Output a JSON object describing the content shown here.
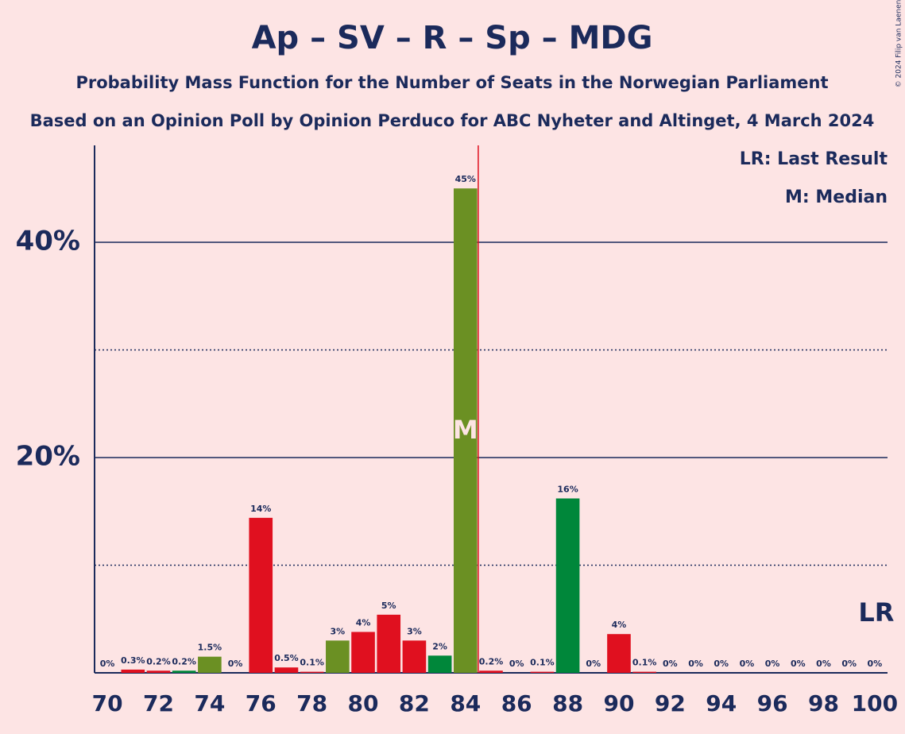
{
  "chart_data": {
    "type": "bar",
    "title": "Ap – SV – R – Sp – MDG",
    "subtitle": "Probability Mass Function for the Number of Seats in the Norwegian Parliament",
    "subtitle2": "Based on an Opinion Poll by Opinion Perduco for ABC Nyheter and Altinget, 4 March 2024",
    "copyright": "© 2024 Filip van Laenen",
    "legend": [
      "LR: Last Result",
      "M: Median"
    ],
    "x": [
      70,
      71,
      72,
      73,
      74,
      75,
      76,
      77,
      78,
      79,
      80,
      81,
      82,
      83,
      84,
      85,
      86,
      87,
      88,
      89,
      90,
      91,
      92,
      93,
      94,
      95,
      96,
      97,
      98,
      99,
      100
    ],
    "values": [
      0,
      0.3,
      0.2,
      0.2,
      1.5,
      0,
      14.4,
      0.5,
      0.1,
      3.0,
      3.8,
      5.4,
      3.0,
      1.6,
      45,
      0.2,
      0,
      0.1,
      16.2,
      0,
      3.6,
      0.1,
      0,
      0,
      0,
      0,
      0,
      0,
      0,
      0,
      0
    ],
    "value_labels": [
      "0%",
      "0.3%",
      "0.2%",
      "0.2%",
      "1.5%",
      "0%",
      "14%",
      "0.5%",
      "0.1%",
      "3%",
      "4%",
      "5%",
      "3%",
      "2%",
      "45%",
      "0.2%",
      "0%",
      "0.1%",
      "16%",
      "0%",
      "4%",
      "0.1%",
      "0%",
      "0%",
      "0%",
      "0%",
      "0%",
      "0%",
      "0%",
      "0%",
      "0%"
    ],
    "colors": [
      "#e0101f",
      "#e0101f",
      "#e0101f",
      "#00873a",
      "#6b9023",
      "#e0101f",
      "#e0101f",
      "#e0101f",
      "#e0101f",
      "#6b9023",
      "#e0101f",
      "#e0101f",
      "#e0101f",
      "#00873a",
      "#6b9023",
      "#e0101f",
      "#e0101f",
      "#e0101f",
      "#00873a",
      "#e0101f",
      "#e0101f",
      "#e0101f",
      "#e0101f",
      "#e0101f",
      "#e0101f",
      "#e0101f",
      "#e0101f",
      "#e0101f",
      "#e0101f",
      "#e0101f",
      "#e0101f"
    ],
    "xlim": [
      69.5,
      100.5
    ],
    "xticks": [
      70,
      72,
      74,
      76,
      78,
      80,
      82,
      84,
      86,
      88,
      90,
      92,
      94,
      96,
      98,
      100
    ],
    "ylim": [
      0,
      49
    ],
    "yticks": [
      {
        "value": 20,
        "label": "20%"
      },
      {
        "value": 40,
        "label": "40%"
      }
    ],
    "minor_yticks": [
      10,
      30
    ],
    "median": 84,
    "median_label": "M",
    "last_result": 100,
    "last_result_label": "LR",
    "majority_line": 84.5
  }
}
